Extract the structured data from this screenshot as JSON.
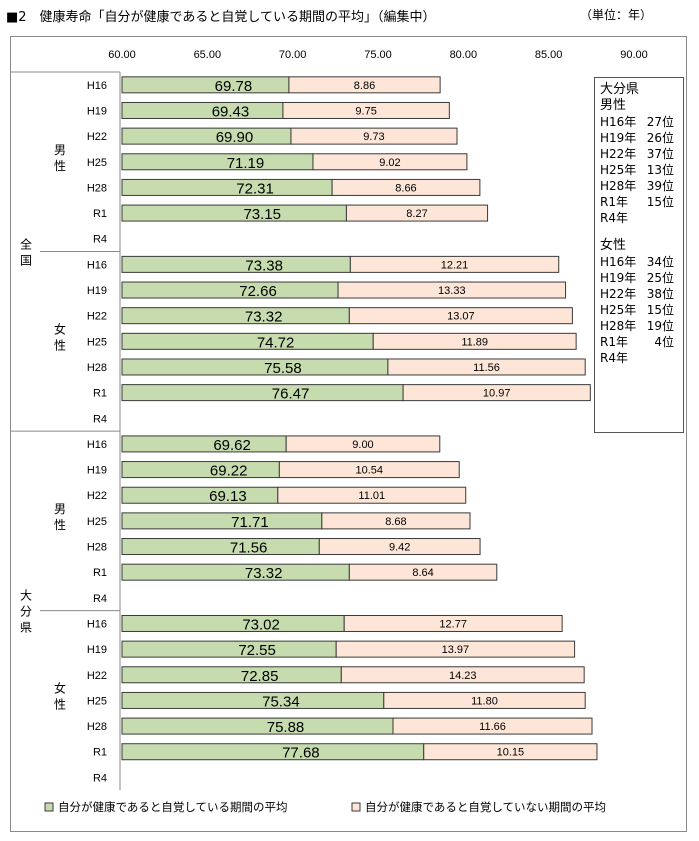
{
  "title": "■2　健康寿命「自分が健康であると自覚している期間の平均」（編集中）",
  "unit": "（単位：年）",
  "chart_data": {
    "type": "bar",
    "stacked": true,
    "orientation": "horizontal",
    "xlim": [
      60,
      90
    ],
    "x_ticks": [
      "60.00",
      "65.00",
      "70.00",
      "75.00",
      "80.00",
      "85.00",
      "90.00"
    ],
    "tick_values": [
      60,
      65,
      70,
      75,
      80,
      85,
      90
    ],
    "colors": {
      "healthy": "#c6dcae",
      "unhealthy": "#fde6d8",
      "border": "#3a3a3a"
    },
    "series": [
      {
        "name": "自分が健康であると自覚している期間の平均"
      },
      {
        "name": "自分が健康であると自覚していない期間の平均"
      }
    ],
    "regions": [
      {
        "label": "全国",
        "groups": [
          {
            "label": "男性",
            "rows": [
              {
                "year": "H16",
                "healthy": 69.78,
                "unhealthy": 8.86
              },
              {
                "year": "H19",
                "healthy": 69.43,
                "unhealthy": 9.75
              },
              {
                "year": "H22",
                "healthy": 69.9,
                "unhealthy": 9.73
              },
              {
                "year": "H25",
                "healthy": 71.19,
                "unhealthy": 9.02
              },
              {
                "year": "H28",
                "healthy": 72.31,
                "unhealthy": 8.66
              },
              {
                "year": "R1",
                "healthy": 73.15,
                "unhealthy": 8.27
              },
              {
                "year": "R4",
                "healthy": null,
                "unhealthy": null
              }
            ]
          },
          {
            "label": "女性",
            "rows": [
              {
                "year": "H16",
                "healthy": 73.38,
                "unhealthy": 12.21
              },
              {
                "year": "H19",
                "healthy": 72.66,
                "unhealthy": 13.33
              },
              {
                "year": "H22",
                "healthy": 73.32,
                "unhealthy": 13.07
              },
              {
                "year": "H25",
                "healthy": 74.72,
                "unhealthy": 11.89
              },
              {
                "year": "H28",
                "healthy": 75.58,
                "unhealthy": 11.56
              },
              {
                "year": "R1",
                "healthy": 76.47,
                "unhealthy": 10.97
              },
              {
                "year": "R4",
                "healthy": null,
                "unhealthy": null
              }
            ]
          }
        ]
      },
      {
        "label": "大分県",
        "groups": [
          {
            "label": "男性",
            "rows": [
              {
                "year": "H16",
                "healthy": 69.62,
                "unhealthy": 9.0
              },
              {
                "year": "H19",
                "healthy": 69.22,
                "unhealthy": 10.54
              },
              {
                "year": "H22",
                "healthy": 69.13,
                "unhealthy": 11.01
              },
              {
                "year": "H25",
                "healthy": 71.71,
                "unhealthy": 8.68
              },
              {
                "year": "H28",
                "healthy": 71.56,
                "unhealthy": 9.42
              },
              {
                "year": "R1",
                "healthy": 73.32,
                "unhealthy": 8.64
              },
              {
                "year": "R4",
                "healthy": null,
                "unhealthy": null
              }
            ]
          },
          {
            "label": "女性",
            "rows": [
              {
                "year": "H16",
                "healthy": 73.02,
                "unhealthy": 12.77
              },
              {
                "year": "H19",
                "healthy": 72.55,
                "unhealthy": 13.97
              },
              {
                "year": "H22",
                "healthy": 72.85,
                "unhealthy": 14.23
              },
              {
                "year": "H25",
                "healthy": 75.34,
                "unhealthy": 11.8
              },
              {
                "year": "H28",
                "healthy": 75.88,
                "unhealthy": 11.66
              },
              {
                "year": "R1",
                "healthy": 77.68,
                "unhealthy": 10.15
              },
              {
                "year": "R4",
                "healthy": null,
                "unhealthy": null
              }
            ]
          }
        ]
      }
    ]
  },
  "rank_box": {
    "prefecture": "大分県",
    "male_label": "男性",
    "male": [
      {
        "year": "H16年",
        "rank": "27位"
      },
      {
        "year": "H19年",
        "rank": "26位"
      },
      {
        "year": "H22年",
        "rank": "37位"
      },
      {
        "year": "H25年",
        "rank": "13位"
      },
      {
        "year": "H28年",
        "rank": "39位"
      },
      {
        "year": "R1年",
        "rank": "15位"
      },
      {
        "year": "R4年",
        "rank": ""
      }
    ],
    "female_label": "女性",
    "female": [
      {
        "year": "H16年",
        "rank": "34位"
      },
      {
        "year": "H19年",
        "rank": "25位"
      },
      {
        "year": "H22年",
        "rank": "38位"
      },
      {
        "year": "H25年",
        "rank": "15位"
      },
      {
        "year": "H28年",
        "rank": "19位"
      },
      {
        "year": "R1年",
        "rank": "4位"
      },
      {
        "year": "R4年",
        "rank": ""
      }
    ]
  }
}
